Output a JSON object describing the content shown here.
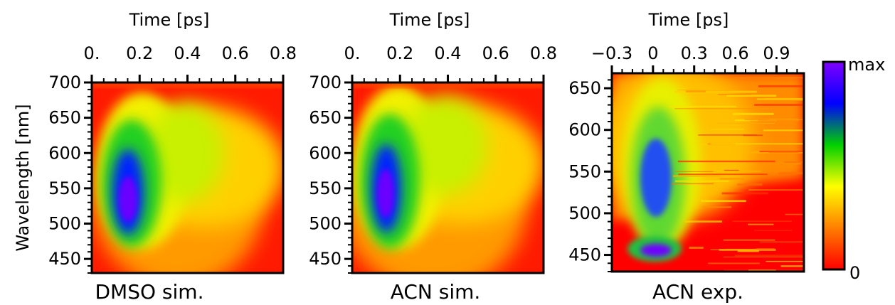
{
  "chart_data": [
    {
      "type": "heatmap",
      "title": "DMSO sim.",
      "xlabel": "Time [ps]",
      "ylabel": "Wavelength [nm]",
      "xlim": [
        0.0,
        0.8
      ],
      "ylim": [
        430,
        700
      ],
      "x_ticks": [
        0.0,
        0.2,
        0.4,
        0.6,
        0.8
      ],
      "x_tick_labels": [
        "0.",
        "0.2",
        "0.4",
        "0.6",
        "0.8"
      ],
      "y_ticks": [
        450,
        500,
        550,
        600,
        650,
        700
      ],
      "y_tick_labels": [
        "450",
        "500",
        "550",
        "600",
        "650",
        "700"
      ],
      "features": [
        {
          "kind": "peak",
          "time_ps": 0.09,
          "wavelength_nm": 525,
          "level": "max"
        },
        {
          "kind": "ridge",
          "time_ps": 0.48,
          "wavelength_nm": 585,
          "level": "medium"
        }
      ]
    },
    {
      "type": "heatmap",
      "title": "ACN sim.",
      "xlabel": "Time [ps]",
      "ylabel": "",
      "xlim": [
        0.0,
        0.8
      ],
      "ylim": [
        430,
        700
      ],
      "x_ticks": [
        0.0,
        0.2,
        0.4,
        0.6,
        0.8
      ],
      "x_tick_labels": [
        "0.",
        "0.2",
        "0.4",
        "0.6",
        "0.8"
      ],
      "y_ticks": [
        450,
        500,
        550,
        600,
        650,
        700
      ],
      "y_tick_labels": [
        "450",
        "500",
        "550",
        "600",
        "650",
        "700"
      ],
      "features": [
        {
          "kind": "peak",
          "time_ps": 0.07,
          "wavelength_nm": 535,
          "level": "max"
        },
        {
          "kind": "ridge",
          "time_ps": 0.5,
          "wavelength_nm": 590,
          "level": "medium"
        }
      ]
    },
    {
      "type": "heatmap",
      "title": "ACN exp.",
      "xlabel": "Time [ps]",
      "ylabel": "",
      "xlim": [
        -0.3,
        1.1
      ],
      "ylim": [
        430,
        668
      ],
      "x_ticks": [
        -0.3,
        0.0,
        0.3,
        0.6,
        0.9
      ],
      "x_tick_labels": [
        "−0.3",
        "0",
        "0.3",
        "0.6",
        "0.9"
      ],
      "y_ticks": [
        450,
        500,
        550,
        600,
        650
      ],
      "y_tick_labels": [
        "450",
        "500",
        "550",
        "600",
        "650"
      ],
      "features": [
        {
          "kind": "peak",
          "time_ps": 0.05,
          "wavelength_nm": 452,
          "level": "max"
        },
        {
          "kind": "band",
          "time_ps": 0.0,
          "wavelength_nm": 540,
          "level": "high"
        }
      ]
    }
  ],
  "colorbar": {
    "max_label": "max",
    "min_label": "0",
    "colors": [
      "#ff0000",
      "#ff7f00",
      "#ffff00",
      "#00d000",
      "#0000ff",
      "#7f00ff"
    ]
  }
}
